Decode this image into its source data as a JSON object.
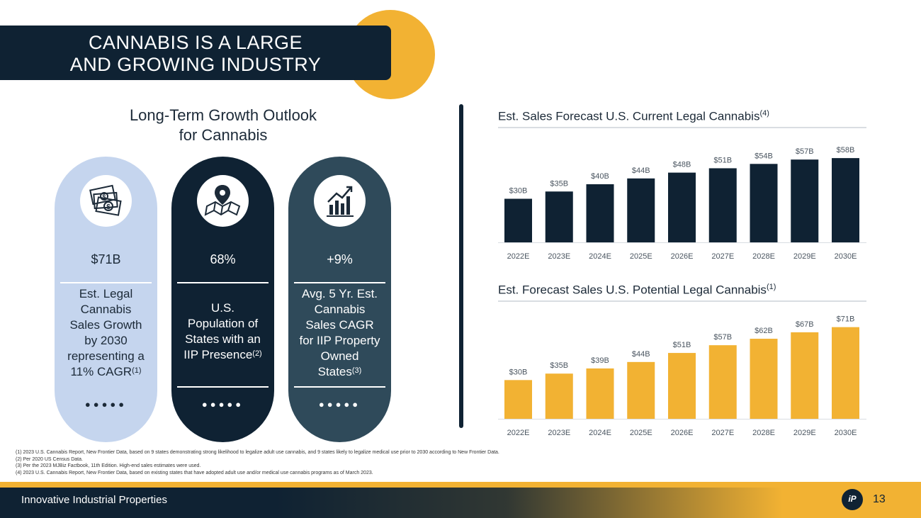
{
  "slide": {
    "title_line1": "CANNABIS IS A LARGE",
    "title_line2": "AND GROWING INDUSTRY",
    "growth_title_line1": "Long-Term Growth Outlook",
    "growth_title_line2": "for Cannabis"
  },
  "pills": [
    {
      "icon": "money-bills-icon",
      "value": "$71B",
      "desc_lines": [
        "Est. Legal",
        "Cannabis",
        "Sales Growth",
        "by 2030",
        "representing a",
        "11% CAGR"
      ],
      "superscript": "(1)",
      "dots": "●●●●●",
      "bg": "#c5d5ee",
      "text_color": "#1c2a38",
      "rule_color": "#ffffff"
    },
    {
      "icon": "map-pin-icon",
      "value": "68%",
      "desc_lines": [
        "U.S.",
        "Population of",
        "States with an",
        "IIP Presence"
      ],
      "superscript": "(2)",
      "dots": "●●●●●",
      "bg": "#0f2233",
      "text_color": "#ffffff",
      "rule_color": "#ffffff"
    },
    {
      "icon": "growth-chart-icon",
      "value": "+9%",
      "desc_lines": [
        "Avg. 5 Yr. Est.",
        "Cannabis",
        "Sales CAGR",
        "for IIP Property",
        "Owned",
        "States"
      ],
      "superscript": "(3)",
      "dots": "●●●●●",
      "bg": "#2f4a5a",
      "text_color": "#ffffff",
      "rule_color": "#ffffff"
    }
  ],
  "chart_data": [
    {
      "type": "bar",
      "title": "Est. Sales Forecast U.S. Current Legal Cannabis",
      "title_superscript": "(4)",
      "categories": [
        "2022E",
        "2023E",
        "2024E",
        "2025E",
        "2026E",
        "2027E",
        "2028E",
        "2029E",
        "2030E"
      ],
      "values": [
        30,
        35,
        40,
        44,
        48,
        51,
        54,
        57,
        58
      ],
      "labels": [
        "$30B",
        "$35B",
        "$40B",
        "$44B",
        "$48B",
        "$51B",
        "$54B",
        "$57B",
        "$58B"
      ],
      "units": "billion USD",
      "ylim": [
        0,
        60
      ],
      "color": "#0f2233",
      "xlabel": "",
      "ylabel": ""
    },
    {
      "type": "bar",
      "title": "Est. Forecast Sales U.S. Potential Legal Cannabis",
      "title_superscript": "(1)",
      "categories": [
        "2022E",
        "2023E",
        "2024E",
        "2025E",
        "2026E",
        "2027E",
        "2028E",
        "2029E",
        "2030E"
      ],
      "values": [
        30,
        35,
        39,
        44,
        51,
        57,
        62,
        67,
        71
      ],
      "labels": [
        "$30B",
        "$35B",
        "$39B",
        "$44B",
        "$51B",
        "$57B",
        "$62B",
        "$67B",
        "$71B"
      ],
      "units": "billion USD",
      "ylim": [
        0,
        73
      ],
      "color": "#f2b233",
      "xlabel": "",
      "ylabel": ""
    }
  ],
  "footnotes": [
    "(1)   2023 U.S. Cannabis Report, New Frontier Data, based on 9 states demonstrating strong likelihood to legalize adult use cannabis, and 9 states likely to legalize medical use prior to 2030 according to New Frontier Data.",
    "(2)   Per 2020 US Census Data.",
    "(3)   Per the 2023 MJBiz Factbook, 11th Edition. High-end sales estimates were used.",
    "(4)   2023 U.S. Cannabis Report, New Frontier Data, based on existing states that have adopted adult use and/or medical use cannabis programs as of March 2023."
  ],
  "footer": {
    "company": "Innovative Industrial Properties",
    "logo_text": "iP",
    "page_number": "13"
  },
  "colors": {
    "navy": "#0f2233",
    "gold": "#f2b233",
    "light_blue": "#c5d5ee",
    "slate": "#2f4a5a"
  }
}
